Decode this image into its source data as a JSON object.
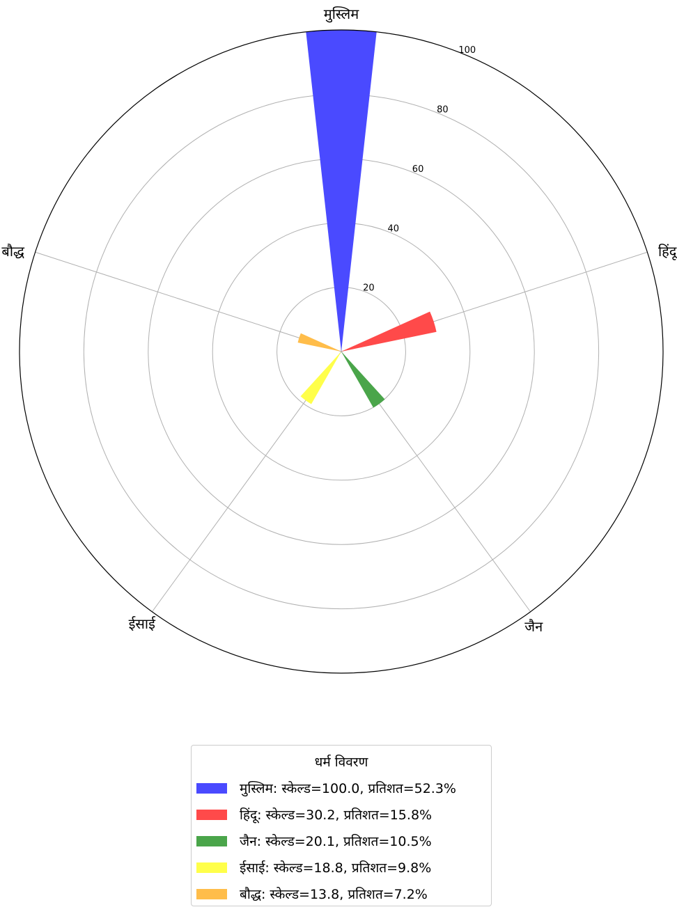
{
  "chart_data": {
    "type": "polar-bar",
    "categories": [
      "मुस्लिम",
      "हिंदू",
      "जैन",
      "ईसाई",
      "बौद्ध"
    ],
    "series": [
      {
        "values": [
          100.0,
          30.2,
          20.1,
          18.8,
          13.8
        ]
      }
    ],
    "percentages": [
      52.3,
      15.8,
      10.5,
      9.8,
      7.2
    ],
    "colors": [
      "#4a4aff",
      "#ff4a4a",
      "#4aa54a",
      "#ffff4a",
      "#ffbd4a"
    ],
    "radial_ticks": [
      "20",
      "40",
      "60",
      "80",
      "100"
    ],
    "rlim": [
      0,
      100
    ],
    "grid": true,
    "legend_position": "bottom-center"
  },
  "legend": {
    "title": "धर्म विवरण",
    "items": [
      "मुस्लिम: स्केल्ड=100.0, प्रतिशत=52.3%",
      "हिंदू: स्केल्ड=30.2, प्रतिशत=15.8%",
      "जैन: स्केल्ड=20.1, प्रतिशत=10.5%",
      "ईसाई: स्केल्ड=18.8, प्रतिशत=9.8%",
      "बौद्ध: स्केल्ड=13.8, प्रतिशत=7.2%"
    ]
  }
}
